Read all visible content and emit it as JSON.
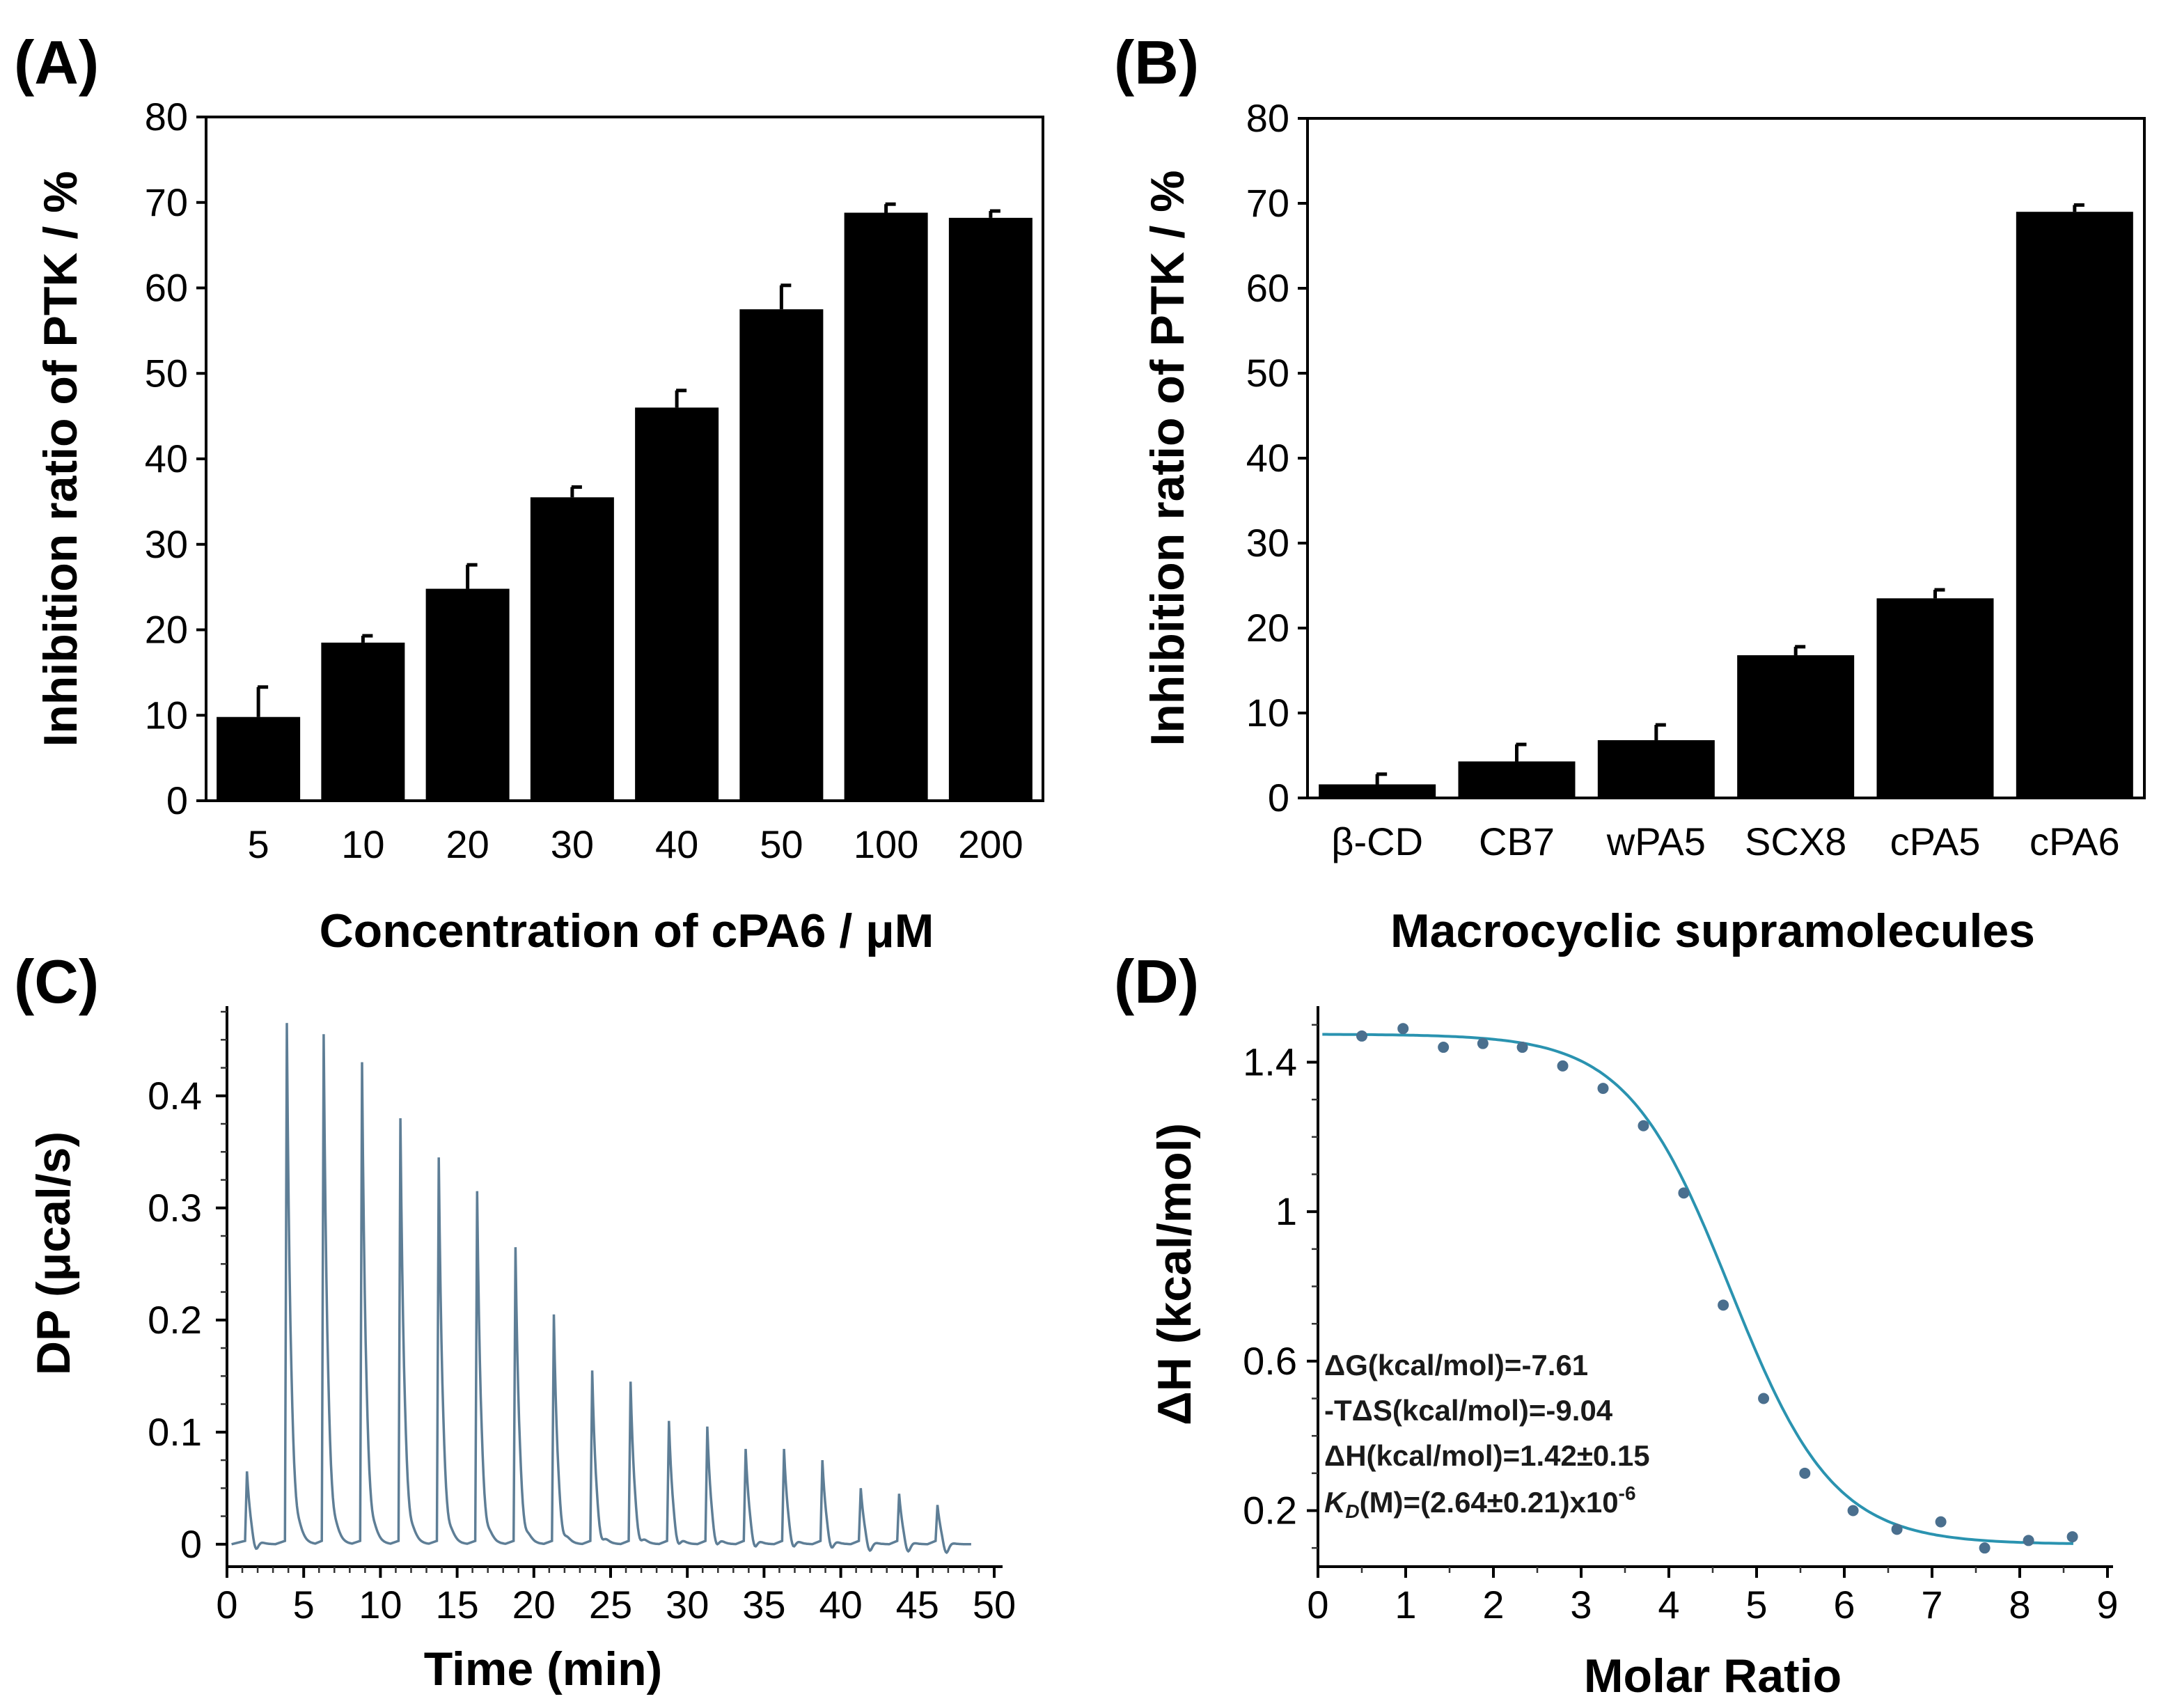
{
  "panels": {
    "a_label": "(A)",
    "b_label": "(B)",
    "c_label": "(C)",
    "d_label": "(D)"
  },
  "colors": {
    "bar": "#000000",
    "itc_trace": "#5e7e96",
    "fit_line": "#2a93b0",
    "fit_points": "#4a6f8e"
  },
  "chart_data": [
    {
      "id": "A",
      "type": "bar",
      "categories": [
        "5",
        "10",
        "20",
        "30",
        "40",
        "50",
        "100",
        "200"
      ],
      "values": [
        9.8,
        18.5,
        24.8,
        35.5,
        46.0,
        57.5,
        68.8,
        68.2
      ],
      "errors": [
        3.5,
        0.8,
        2.8,
        1.2,
        2.0,
        2.8,
        1.0,
        0.8
      ],
      "ylabel": "Inhibition ratio of PTK / %",
      "xlabel": "Concentration of cPA6 / μM",
      "ylim": [
        0,
        80
      ],
      "yticks": [
        "0",
        "10",
        "20",
        "30",
        "40",
        "50",
        "60",
        "70",
        "80"
      ]
    },
    {
      "id": "B",
      "type": "bar",
      "categories": [
        "β-CD",
        "CB7",
        "wPA5",
        "SCX8",
        "cPA5",
        "cPA6"
      ],
      "values": [
        1.6,
        4.3,
        6.8,
        16.8,
        23.5,
        69.0
      ],
      "errors": [
        1.2,
        2.0,
        1.8,
        1.0,
        1.0,
        0.8
      ],
      "ylabel": "Inhibition ratio of PTK / %",
      "xlabel": "Macrocyclic supramolecules",
      "ylim": [
        0,
        80
      ],
      "yticks": [
        "0",
        "10",
        "20",
        "30",
        "40",
        "50",
        "60",
        "70",
        "80"
      ]
    },
    {
      "id": "C",
      "type": "line",
      "xlabel": "Time (min)",
      "ylabel": "DP (μcal/s)",
      "xlim": [
        0,
        50
      ],
      "ylim": [
        -0.02,
        0.48
      ],
      "xticks": [
        "0",
        "5",
        "10",
        "15",
        "20",
        "25",
        "30",
        "35",
        "40",
        "45",
        "50"
      ],
      "yticks": [
        "0",
        "0.1",
        "0.2",
        "0.3",
        "0.4"
      ],
      "injection_times": [
        1.3,
        3.9,
        6.3,
        8.8,
        11.3,
        13.8,
        16.3,
        18.8,
        21.3,
        23.8,
        26.3,
        28.8,
        31.3,
        33.8,
        36.3,
        38.8,
        41.3,
        43.8,
        46.3
      ],
      "peak_heights": [
        0.065,
        0.465,
        0.455,
        0.43,
        0.38,
        0.345,
        0.315,
        0.265,
        0.205,
        0.155,
        0.145,
        0.11,
        0.105,
        0.085,
        0.085,
        0.075,
        0.05,
        0.045,
        0.035
      ],
      "end_time": 48.5
    },
    {
      "id": "D",
      "type": "scatter",
      "xlabel": "Molar Ratio",
      "ylabel": "ΔH (kcal/mol)",
      "xlim": [
        0,
        9
      ],
      "ylim": [
        0.05,
        1.55
      ],
      "xticks": [
        "0",
        "1",
        "2",
        "3",
        "4",
        "5",
        "6",
        "7",
        "8",
        "9"
      ],
      "yticks": [
        "0.2",
        "0.6",
        "1",
        "1.4"
      ],
      "points": [
        [
          0.5,
          1.47
        ],
        [
          0.97,
          1.49
        ],
        [
          1.43,
          1.44
        ],
        [
          1.88,
          1.45
        ],
        [
          2.33,
          1.44
        ],
        [
          2.79,
          1.39
        ],
        [
          3.25,
          1.33
        ],
        [
          3.71,
          1.23
        ],
        [
          4.17,
          1.05
        ],
        [
          4.62,
          0.75
        ],
        [
          5.08,
          0.5
        ],
        [
          5.55,
          0.3
        ],
        [
          6.1,
          0.2
        ],
        [
          6.6,
          0.15
        ],
        [
          7.1,
          0.17
        ],
        [
          7.6,
          0.1
        ],
        [
          8.1,
          0.12
        ],
        [
          8.6,
          0.13
        ]
      ],
      "fit": {
        "top": 1.475,
        "bottom": 0.11,
        "x50": 4.7,
        "k": 1.7
      },
      "annotations": [
        "ΔG(kcal/mol)=-7.61",
        "-TΔS(kcal/mol)=-9.04",
        "ΔH(kcal/mol)=1.42±0.15"
      ],
      "kd_prefix": "K",
      "kd_sub": "D",
      "kd_value": "(M)=(2.64±0.21)x10",
      "kd_exp": "-6"
    }
  ]
}
